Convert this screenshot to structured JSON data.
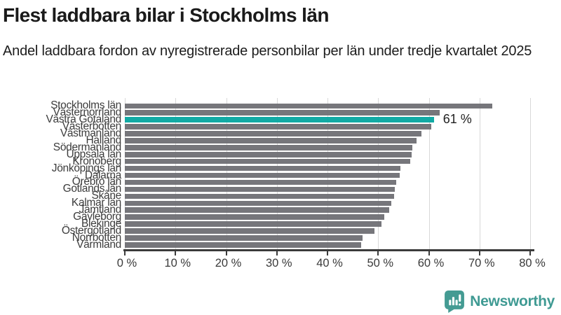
{
  "chart_data": {
    "type": "bar",
    "orientation": "horizontal",
    "title": "Flest laddbara bilar i Stockholms län",
    "subtitle": "Andel laddbara fordon av nyregistrerade personbilar per län under tredje kvartalet 2025",
    "categories": [
      "Stockholms län",
      "Västernorrland",
      "Västra Götaland",
      "Västerbotten",
      "Västmanland",
      "Halland",
      "Södermanland",
      "Uppsala län",
      "Kronoberg",
      "Jönköpings län",
      "Dalarna",
      "Örebro län",
      "Gotlands län",
      "Skåne",
      "Kalmar län",
      "Jämtland",
      "Gävleborg",
      "Blekinge",
      "Östergötland",
      "Norrbotten",
      "Värmland"
    ],
    "values": [
      72.5,
      62.2,
      61.0,
      60.5,
      58.6,
      57.6,
      56.8,
      56.6,
      56.4,
      54.4,
      54.2,
      53.6,
      53.3,
      53.2,
      52.6,
      52.2,
      51.2,
      50.7,
      49.3,
      46.9,
      46.6
    ],
    "highlighted_category": "Västra Götaland",
    "highlight_label": "61 %",
    "xlim": [
      0,
      80
    ],
    "x_ticks": [
      "0 %",
      "10 %",
      "20 %",
      "30 %",
      "40 %",
      "50 %",
      "60 %",
      "70 %",
      "80 %"
    ],
    "grid": true,
    "legend": "none",
    "colors": {
      "bar": "#6c6c71",
      "highlight": "#00a49e",
      "gridline": "#d8d8d8",
      "axis": "#3b3b3b",
      "text": "#1a1a1a"
    }
  },
  "footer": {
    "brand": "Newsworthy",
    "brand_color": "#3f9a93"
  }
}
